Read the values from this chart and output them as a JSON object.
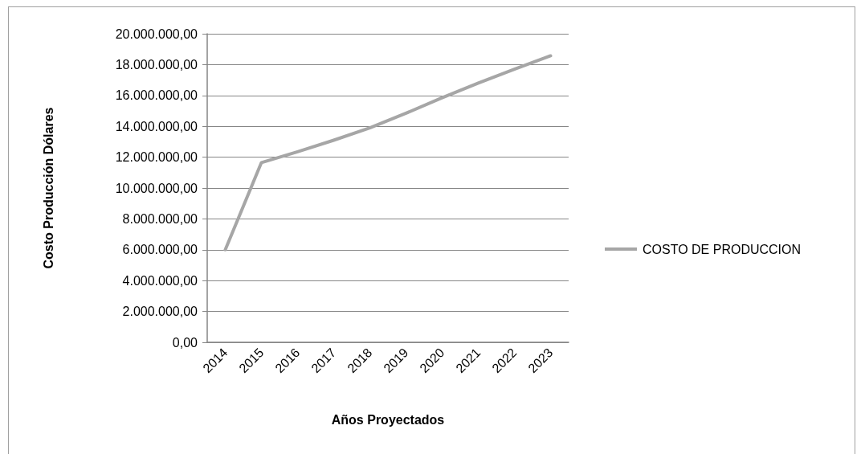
{
  "chart_data": {
    "type": "line",
    "xlabel": "Años Proyectados",
    "ylabel": "Costo Producción Dólares",
    "categories": [
      "2014",
      "2015",
      "2016",
      "2017",
      "2018",
      "2019",
      "2020",
      "2021",
      "2022",
      "2023"
    ],
    "series": [
      {
        "name": "COSTO DE PRODUCCION",
        "color": "#a6a6a6",
        "values": [
          6000000,
          11650000,
          12350000,
          13100000,
          13900000,
          14850000,
          15850000,
          16800000,
          17700000,
          18570000
        ]
      }
    ],
    "ylim": [
      0,
      20000000
    ],
    "yticks": [
      {
        "value": 0,
        "label": "0,00"
      },
      {
        "value": 2000000,
        "label": "2.000.000,00"
      },
      {
        "value": 4000000,
        "label": "4.000.000,00"
      },
      {
        "value": 6000000,
        "label": "6.000.000,00"
      },
      {
        "value": 8000000,
        "label": "8.000.000,00"
      },
      {
        "value": 10000000,
        "label": "10.000.000,00"
      },
      {
        "value": 12000000,
        "label": "12.000.000,00"
      },
      {
        "value": 14000000,
        "label": "14.000.000,00"
      },
      {
        "value": 16000000,
        "label": "16.000.000,00"
      },
      {
        "value": 18000000,
        "label": "18.000.000,00"
      },
      {
        "value": 20000000,
        "label": "20.000.000,00"
      }
    ],
    "grid": "y",
    "legend": "right",
    "marker": "none",
    "line_style": "solid"
  }
}
